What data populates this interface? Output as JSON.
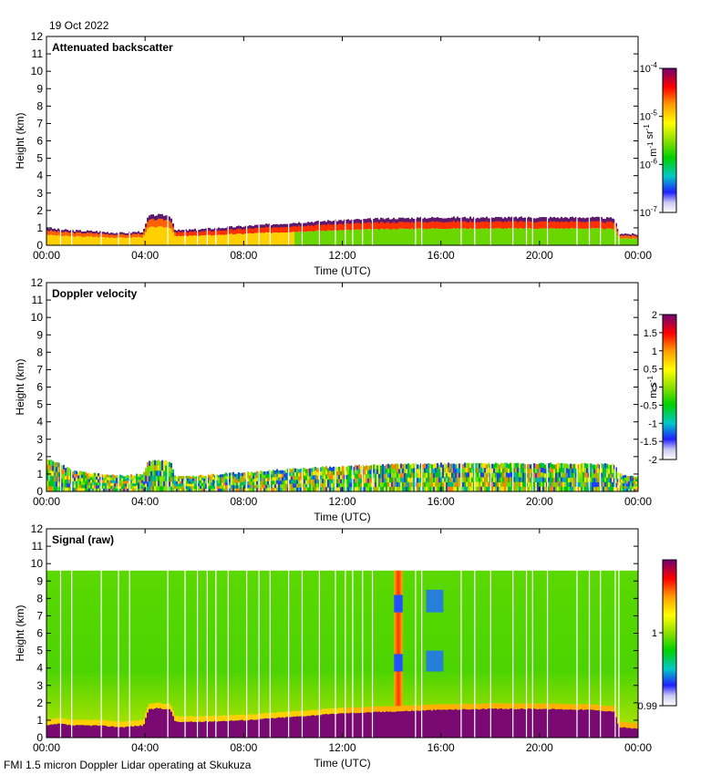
{
  "date": "19 Oct 2022",
  "footer": "FMI 1.5 micron Doppler Lidar operating at Skukuza",
  "colors": {
    "frame": "#000000",
    "background": "#ffffff",
    "ground_mask": "#7a0a72",
    "gap_lines": "#ffffff"
  },
  "chart_data": [
    {
      "type": "heatmap",
      "title": "Attenuated backscatter",
      "xlabel": "Time (UTC)",
      "ylabel": "Height (km)",
      "xticks": [
        "00:00",
        "04:00",
        "08:00",
        "12:00",
        "16:00",
        "20:00",
        "00:00"
      ],
      "yticks": [
        "0",
        "1",
        "2",
        "3",
        "4",
        "5",
        "6",
        "7",
        "8",
        "9",
        "10",
        "11",
        "12"
      ],
      "xlim_hours": [
        0,
        24
      ],
      "ylim_km": [
        0,
        12
      ],
      "colorbar": {
        "label": "m-1 sr-1",
        "label_parts": [
          "m",
          "-1",
          " sr",
          "-1"
        ],
        "scale": "log",
        "ticks": [
          {
            "base": "10",
            "exp": "-4",
            "frac": 1.0
          },
          {
            "base": "10",
            "exp": "-5",
            "frac": 0.6667
          },
          {
            "base": "10",
            "exp": "-6",
            "frac": 0.3333
          },
          {
            "base": "10",
            "exp": "-7",
            "frac": 0.0
          }
        ],
        "colormap": "purple-red-orange-yellow-green-blue-white"
      },
      "layer_top_km": {
        "hours": [
          0,
          0.5,
          1,
          2,
          3,
          3.9,
          4.1,
          4.5,
          5.0,
          5.2,
          6,
          8,
          10,
          12,
          14,
          16,
          18,
          20,
          22,
          23,
          23.2,
          24
        ],
        "values": [
          1.0,
          0.9,
          0.85,
          0.8,
          0.7,
          0.8,
          1.7,
          1.75,
          1.7,
          0.85,
          0.9,
          1.1,
          1.3,
          1.45,
          1.55,
          1.6,
          1.6,
          1.6,
          1.6,
          1.55,
          0.7,
          0.6
        ]
      }
    },
    {
      "type": "heatmap",
      "title": "Doppler velocity",
      "xlabel": "Time (UTC)",
      "ylabel": "Height (km)",
      "xticks": [
        "00:00",
        "04:00",
        "08:00",
        "12:00",
        "16:00",
        "20:00",
        "00:00"
      ],
      "yticks": [
        "0",
        "1",
        "2",
        "3",
        "4",
        "5",
        "6",
        "7",
        "8",
        "9",
        "10",
        "11",
        "12"
      ],
      "xlim_hours": [
        0,
        24
      ],
      "ylim_km": [
        0,
        12
      ],
      "colorbar": {
        "label": "m s-1",
        "label_parts": [
          "m s",
          "-1"
        ],
        "scale": "linear",
        "range": [
          -2,
          2
        ],
        "ticks": [
          "2",
          "1.5",
          "1",
          "0.5",
          "0",
          "-0.5",
          "-1",
          "-1.5",
          "-2"
        ],
        "colormap": "purple-red-orange-yellow-green-blue-white"
      },
      "layer_top_km": {
        "hours": [
          0,
          0.5,
          1,
          2,
          3,
          3.9,
          4.1,
          4.5,
          5.0,
          5.2,
          6,
          8,
          10,
          12,
          14,
          16,
          18,
          20,
          22,
          23,
          23.2,
          24
        ],
        "values": [
          1.9,
          1.6,
          1.2,
          1.0,
          0.9,
          1.0,
          1.75,
          1.8,
          1.7,
          0.9,
          0.9,
          1.1,
          1.3,
          1.45,
          1.55,
          1.6,
          1.6,
          1.6,
          1.6,
          1.55,
          1.0,
          0.8
        ]
      }
    },
    {
      "type": "heatmap",
      "title": "Signal (raw)",
      "xlabel": "Time (UTC)",
      "ylabel": "Height (km)",
      "xticks": [
        "00:00",
        "04:00",
        "08:00",
        "12:00",
        "16:00",
        "20:00",
        "00:00"
      ],
      "yticks": [
        "0",
        "1",
        "2",
        "3",
        "4",
        "5",
        "6",
        "7",
        "8",
        "9",
        "10",
        "11",
        "12"
      ],
      "xlim_hours": [
        0,
        24
      ],
      "ylim_km": [
        0,
        12
      ],
      "data_top_km": 9.6,
      "colorbar": {
        "label": "",
        "scale": "linear",
        "range": [
          0.99,
          1.01
        ],
        "ticks": [
          "1",
          "0.99"
        ],
        "colormap": "purple-red-orange-yellow-green-blue-white"
      },
      "surface_layer_top_km": {
        "hours": [
          0,
          0.5,
          1,
          2,
          3,
          3.9,
          4.1,
          4.5,
          5.0,
          5.2,
          6,
          8,
          10,
          12,
          14,
          16,
          18,
          20,
          22,
          23,
          23.2,
          24
        ],
        "values": [
          0.7,
          0.8,
          0.7,
          0.7,
          0.6,
          0.7,
          1.6,
          1.7,
          1.6,
          0.9,
          0.9,
          1.0,
          1.2,
          1.4,
          1.5,
          1.6,
          1.65,
          1.65,
          1.6,
          1.5,
          0.6,
          0.5
        ]
      },
      "features": [
        {
          "name": "high-signal column",
          "hour_start": 14.1,
          "hour_end": 14.45,
          "km_range": [
            1.8,
            9.6
          ]
        },
        {
          "name": "low-signal blob",
          "hour_start": 15.4,
          "hour_end": 16.1,
          "km_range": [
            3.8,
            5.0
          ]
        },
        {
          "name": "low-signal blob",
          "hour_start": 15.4,
          "hour_end": 16.1,
          "km_range": [
            7.2,
            8.5
          ]
        }
      ]
    }
  ],
  "gap_hours": [
    0.55,
    1.0,
    2.2,
    2.9,
    3.35,
    4.9,
    5.6,
    6.1,
    6.5,
    6.85,
    7.35,
    8.1,
    8.6,
    9.05,
    9.8,
    10.35,
    11.05,
    11.7,
    12.1,
    12.4,
    12.8,
    13.2,
    14.95,
    15.2,
    16.8,
    17.35,
    18.0,
    18.9,
    19.45,
    19.7,
    20.3,
    21.5,
    22.0,
    22.45,
    23.05,
    23.2
  ]
}
